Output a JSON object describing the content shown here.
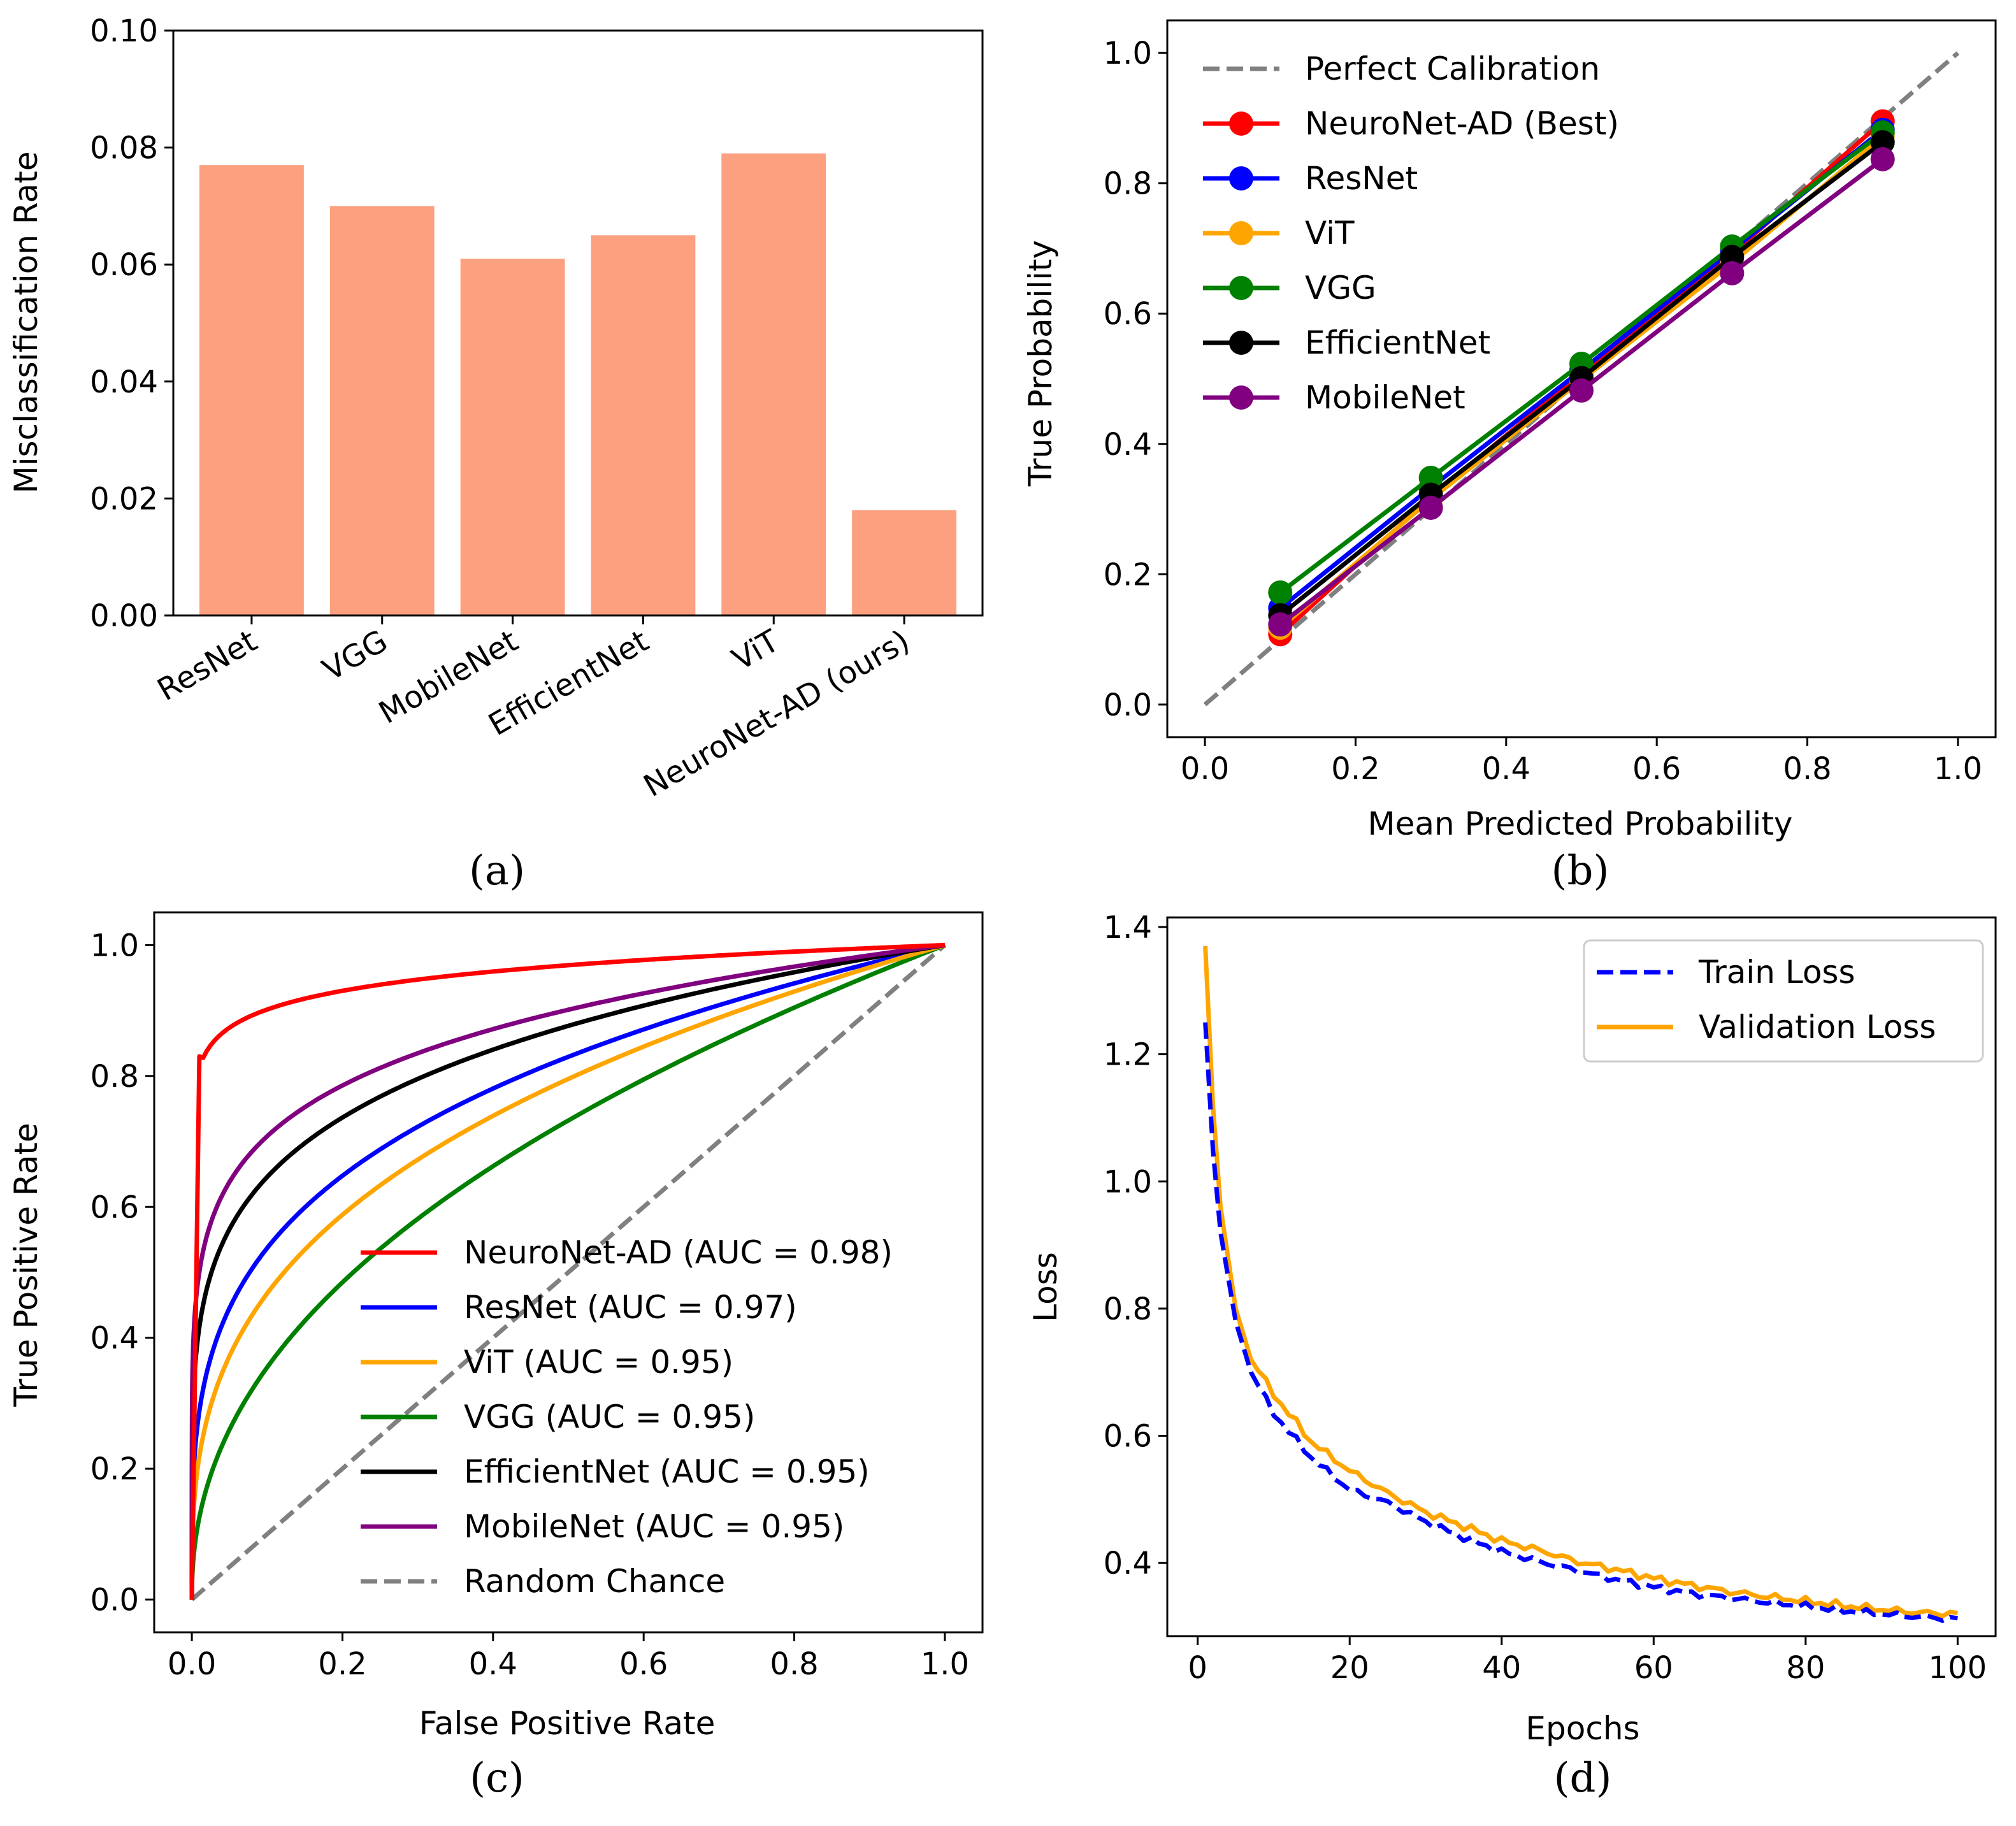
{
  "figure": {
    "colors": {
      "bar": "#fca080",
      "red": "#ff0000",
      "blue": "#0000ff",
      "orange": "#ffa500",
      "green": "#008000",
      "black": "#000000",
      "purple": "#800080",
      "gray": "#808080"
    }
  },
  "chart_data": [
    {
      "id": "a",
      "type": "bar",
      "caption": "(a)",
      "title": "",
      "xlabel": "",
      "ylabel": "Misclassification Rate",
      "ylim": [
        0,
        0.1
      ],
      "yticks": [
        "0.00",
        "0.02",
        "0.04",
        "0.06",
        "0.08",
        "0.10"
      ],
      "categories": [
        "ResNet",
        "VGG",
        "MobileNet",
        "EfficientNet",
        "ViT",
        "NeuroNet-AD (ours)"
      ],
      "values": [
        0.077,
        0.07,
        0.061,
        0.065,
        0.079,
        0.018
      ]
    },
    {
      "id": "b",
      "type": "line",
      "caption": "(b)",
      "xlabel": "Mean Predicted Probability",
      "ylabel": "True Probability",
      "xlim": [
        -0.05,
        1.05
      ],
      "ylim": [
        -0.05,
        1.05
      ],
      "xticks": [
        "0.0",
        "0.2",
        "0.4",
        "0.6",
        "0.8",
        "1.0"
      ],
      "yticks": [
        "0.0",
        "0.2",
        "0.4",
        "0.6",
        "0.8",
        "1.0"
      ],
      "legend_position": "top-left",
      "reference": {
        "name": "Perfect Calibration",
        "x": [
          0,
          1
        ],
        "y": [
          0,
          1
        ],
        "color": "gray",
        "dash": true
      },
      "x": [
        0.1,
        0.3,
        0.5,
        0.7,
        0.9
      ],
      "series": [
        {
          "name": "NeuroNet-AD (Best)",
          "color": "red",
          "values": [
            0.108,
            0.318,
            0.508,
            0.692,
            0.895
          ]
        },
        {
          "name": "ResNet",
          "color": "blue",
          "values": [
            0.148,
            0.333,
            0.513,
            0.697,
            0.882
          ]
        },
        {
          "name": "ViT",
          "color": "orange",
          "values": [
            0.118,
            0.315,
            0.498,
            0.678,
            0.872
          ]
        },
        {
          "name": "VGG",
          "color": "green",
          "values": [
            0.172,
            0.348,
            0.523,
            0.703,
            0.878
          ]
        },
        {
          "name": "EfficientNet",
          "color": "black",
          "values": [
            0.137,
            0.322,
            0.501,
            0.687,
            0.863
          ]
        },
        {
          "name": "MobileNet",
          "color": "purple",
          "values": [
            0.123,
            0.302,
            0.482,
            0.662,
            0.837
          ]
        }
      ]
    },
    {
      "id": "c",
      "type": "line",
      "caption": "(c)",
      "xlabel": "False Positive Rate",
      "ylabel": "True Positive Rate",
      "xlim": [
        -0.05,
        1.05
      ],
      "ylim": [
        -0.05,
        1.05
      ],
      "xticks": [
        "0.0",
        "0.2",
        "0.4",
        "0.6",
        "0.8",
        "1.0"
      ],
      "yticks": [
        "0.0",
        "0.2",
        "0.4",
        "0.6",
        "0.8",
        "1.0"
      ],
      "legend_position": "lower-right",
      "curve_model": "TPR = FPR^exponent",
      "series": [
        {
          "name": "NeuroNet-AD (AUC = 0.98)",
          "color": "red",
          "exponent": 0.045,
          "jump": 0.83
        },
        {
          "name": "ResNet (AUC = 0.97)",
          "color": "blue",
          "exponent": 0.27
        },
        {
          "name": "ViT (AUC = 0.95)",
          "color": "orange",
          "exponent": 0.33
        },
        {
          "name": "VGG (AUC = 0.95)",
          "color": "green",
          "exponent": 0.45
        },
        {
          "name": "EfficientNet (AUC = 0.95)",
          "color": "black",
          "exponent": 0.19
        },
        {
          "name": "MobileNet (AUC = 0.95)",
          "color": "purple",
          "exponent": 0.15
        },
        {
          "name": "Random Chance",
          "color": "gray",
          "dash": true,
          "exponent": 1.0
        }
      ]
    },
    {
      "id": "d",
      "type": "line",
      "caption": "(d)",
      "xlabel": "Epochs",
      "ylabel": "Loss",
      "xlim": [
        -4,
        105
      ],
      "ylim": [
        0.285,
        1.415
      ],
      "xticks": [
        "0",
        "20",
        "40",
        "60",
        "80",
        "100"
      ],
      "yticks": [
        "0.4",
        "0.6",
        "0.8",
        "1.0",
        "1.2",
        "1.4"
      ],
      "legend_position": "top-right",
      "series": [
        {
          "name": "Train Loss",
          "color": "blue",
          "dash": true,
          "epochs": [
            1,
            2,
            3,
            5,
            7,
            10,
            15,
            20,
            25,
            30,
            35,
            40,
            45,
            50,
            55,
            60,
            65,
            70,
            75,
            80,
            85,
            90,
            95,
            100
          ],
          "values": [
            1.25,
            1.05,
            0.92,
            0.78,
            0.7,
            0.635,
            0.565,
            0.515,
            0.495,
            0.465,
            0.44,
            0.418,
            0.402,
            0.388,
            0.374,
            0.362,
            0.352,
            0.345,
            0.338,
            0.332,
            0.325,
            0.32,
            0.315,
            0.312
          ]
        },
        {
          "name": "Validation Loss",
          "color": "orange",
          "dash": false,
          "epochs": [
            1,
            2,
            3,
            5,
            7,
            10,
            15,
            20,
            25,
            30,
            35,
            40,
            45,
            50,
            55,
            60,
            65,
            70,
            75,
            80,
            85,
            90,
            95,
            100
          ],
          "values": [
            1.37,
            1.12,
            0.96,
            0.8,
            0.72,
            0.665,
            0.59,
            0.545,
            0.51,
            0.48,
            0.458,
            0.435,
            0.42,
            0.402,
            0.39,
            0.376,
            0.365,
            0.355,
            0.347,
            0.34,
            0.333,
            0.327,
            0.322,
            0.32
          ]
        }
      ]
    }
  ]
}
